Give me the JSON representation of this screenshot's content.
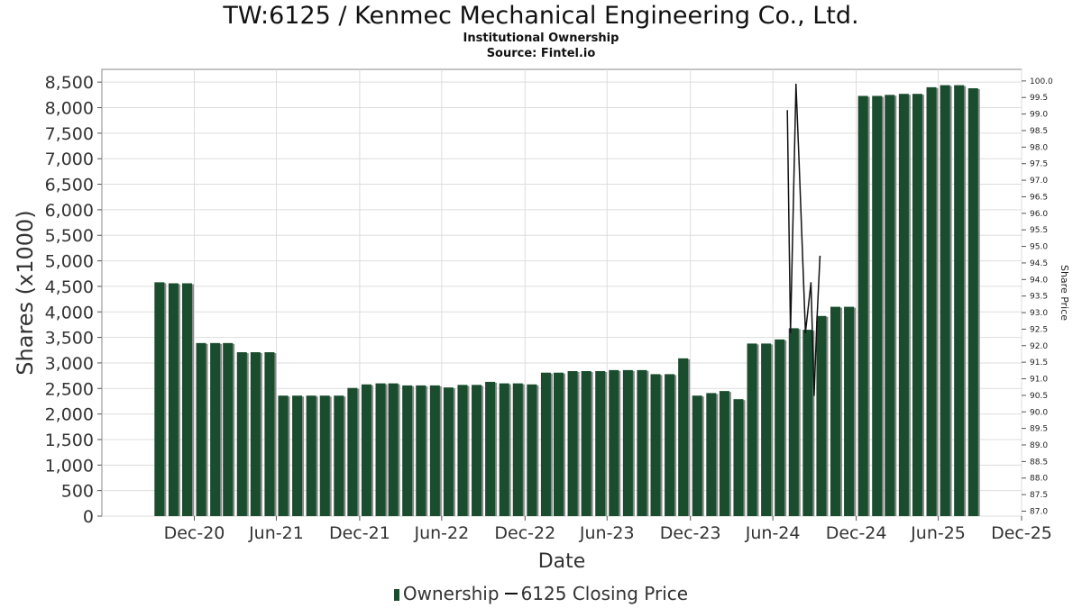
{
  "header": {
    "title": "TW:6125 / Kenmec Mechanical Engineering Co., Ltd.",
    "subtitle": "Institutional Ownership",
    "source": "Source: Fintel.io"
  },
  "legend": {
    "ownership_label": "Ownership",
    "price_label": "6125 Closing Price"
  },
  "colors": {
    "bar": "#1a4d2e",
    "bar_shadow": "#888888",
    "line": "#111111",
    "grid": "#dddddd"
  },
  "chart_data": {
    "type": "bar",
    "xlabel": "Date",
    "ylabel": "Shares (x1000)",
    "y2label": "Share Price",
    "ylim": [
      0,
      8750
    ],
    "y2lim": [
      86.85,
      100.35
    ],
    "yticks": [
      0,
      500,
      1000,
      1500,
      2000,
      2500,
      3000,
      3500,
      4000,
      4500,
      5000,
      5500,
      6000,
      6500,
      7000,
      7500,
      8000,
      8500
    ],
    "ytick_labels": [
      "0",
      "500",
      "1,000",
      "1,500",
      "2,000",
      "2,500",
      "3,000",
      "3,500",
      "4,000",
      "4,500",
      "5,000",
      "5,500",
      "6,000",
      "6,500",
      "7,000",
      "7,500",
      "8,000",
      "8,500"
    ],
    "y2ticks": [
      "87.0",
      "87.5",
      "88.0",
      "88.5",
      "89.0",
      "89.5",
      "90.0",
      "90.5",
      "91.0",
      "91.5",
      "92.0",
      "92.5",
      "93.0",
      "93.5",
      "94.0",
      "94.5",
      "95.0",
      "95.5",
      "96.0",
      "96.5",
      "97.0",
      "97.5",
      "98.0",
      "98.5",
      "99.0",
      "99.5",
      "100.0"
    ],
    "xlim": [
      "2020-06-10",
      "2025-12-31"
    ],
    "xticks": [
      {
        "date": "2020-12-31",
        "label": "Dec-20"
      },
      {
        "date": "2021-06-30",
        "label": "Jun-21"
      },
      {
        "date": "2021-12-31",
        "label": "Dec-21"
      },
      {
        "date": "2022-06-30",
        "label": "Jun-22"
      },
      {
        "date": "2022-12-31",
        "label": "Dec-22"
      },
      {
        "date": "2023-06-30",
        "label": "Jun-23"
      },
      {
        "date": "2023-12-31",
        "label": "Dec-23"
      },
      {
        "date": "2024-06-30",
        "label": "Jun-24"
      },
      {
        "date": "2024-12-31",
        "label": "Dec-24"
      },
      {
        "date": "2025-06-30",
        "label": "Jun-25"
      },
      {
        "date": "2025-12-31",
        "label": "Dec-25"
      }
    ],
    "series": [
      {
        "name": "Ownership",
        "bars": [
          {
            "date": "2020-10-15",
            "value": 4580
          },
          {
            "date": "2020-11-15",
            "value": 4560
          },
          {
            "date": "2020-12-15",
            "value": 4560
          },
          {
            "date": "2021-01-15",
            "value": 3390
          },
          {
            "date": "2021-02-15",
            "value": 3390
          },
          {
            "date": "2021-03-15",
            "value": 3390
          },
          {
            "date": "2021-04-15",
            "value": 3210
          },
          {
            "date": "2021-05-15",
            "value": 3210
          },
          {
            "date": "2021-06-15",
            "value": 3210
          },
          {
            "date": "2021-07-15",
            "value": 2360
          },
          {
            "date": "2021-08-15",
            "value": 2360
          },
          {
            "date": "2021-09-15",
            "value": 2360
          },
          {
            "date": "2021-10-15",
            "value": 2360
          },
          {
            "date": "2021-11-15",
            "value": 2360
          },
          {
            "date": "2021-12-15",
            "value": 2510
          },
          {
            "date": "2022-01-15",
            "value": 2580
          },
          {
            "date": "2022-02-15",
            "value": 2600
          },
          {
            "date": "2022-03-15",
            "value": 2600
          },
          {
            "date": "2022-04-15",
            "value": 2560
          },
          {
            "date": "2022-05-15",
            "value": 2560
          },
          {
            "date": "2022-06-15",
            "value": 2560
          },
          {
            "date": "2022-07-15",
            "value": 2520
          },
          {
            "date": "2022-08-15",
            "value": 2570
          },
          {
            "date": "2022-09-15",
            "value": 2570
          },
          {
            "date": "2022-10-15",
            "value": 2630
          },
          {
            "date": "2022-11-15",
            "value": 2600
          },
          {
            "date": "2022-12-15",
            "value": 2600
          },
          {
            "date": "2023-01-15",
            "value": 2580
          },
          {
            "date": "2023-02-15",
            "value": 2810
          },
          {
            "date": "2023-03-15",
            "value": 2810
          },
          {
            "date": "2023-04-15",
            "value": 2840
          },
          {
            "date": "2023-05-15",
            "value": 2840
          },
          {
            "date": "2023-06-15",
            "value": 2840
          },
          {
            "date": "2023-07-15",
            "value": 2860
          },
          {
            "date": "2023-08-15",
            "value": 2860
          },
          {
            "date": "2023-09-15",
            "value": 2860
          },
          {
            "date": "2023-10-15",
            "value": 2780
          },
          {
            "date": "2023-11-15",
            "value": 2780
          },
          {
            "date": "2023-12-15",
            "value": 3090
          },
          {
            "date": "2024-01-15",
            "value": 2360
          },
          {
            "date": "2024-02-15",
            "value": 2410
          },
          {
            "date": "2024-03-15",
            "value": 2450
          },
          {
            "date": "2024-04-15",
            "value": 2290
          },
          {
            "date": "2024-05-15",
            "value": 3380
          },
          {
            "date": "2024-06-15",
            "value": 3380
          },
          {
            "date": "2024-07-15",
            "value": 3460
          },
          {
            "date": "2024-08-15",
            "value": 3680
          },
          {
            "date": "2024-09-15",
            "value": 3650
          },
          {
            "date": "2024-10-15",
            "value": 3920
          },
          {
            "date": "2024-11-15",
            "value": 4100
          },
          {
            "date": "2024-12-15",
            "value": 4100
          },
          {
            "date": "2025-01-15",
            "value": 8230
          },
          {
            "date": "2025-02-15",
            "value": 8230
          },
          {
            "date": "2025-03-15",
            "value": 8250
          },
          {
            "date": "2025-04-15",
            "value": 8270
          },
          {
            "date": "2025-05-15",
            "value": 8270
          },
          {
            "date": "2025-06-15",
            "value": 8400
          },
          {
            "date": "2025-07-15",
            "value": 8440
          },
          {
            "date": "2025-08-15",
            "value": 8440
          },
          {
            "date": "2025-09-15",
            "value": 8380
          }
        ]
      },
      {
        "name": "6125 Closing Price",
        "axis": "right",
        "points": [
          {
            "date": "2024-08-01",
            "value": 99.1
          },
          {
            "date": "2024-08-08",
            "value": 92.4
          },
          {
            "date": "2024-08-20",
            "value": 99.9
          },
          {
            "date": "2024-08-27",
            "value": 97.5
          },
          {
            "date": "2024-09-10",
            "value": 92.4
          },
          {
            "date": "2024-09-22",
            "value": 93.9
          },
          {
            "date": "2024-09-29",
            "value": 90.5
          },
          {
            "date": "2024-10-05",
            "value": 92.7
          },
          {
            "date": "2024-10-12",
            "value": 94.7
          }
        ]
      }
    ]
  }
}
